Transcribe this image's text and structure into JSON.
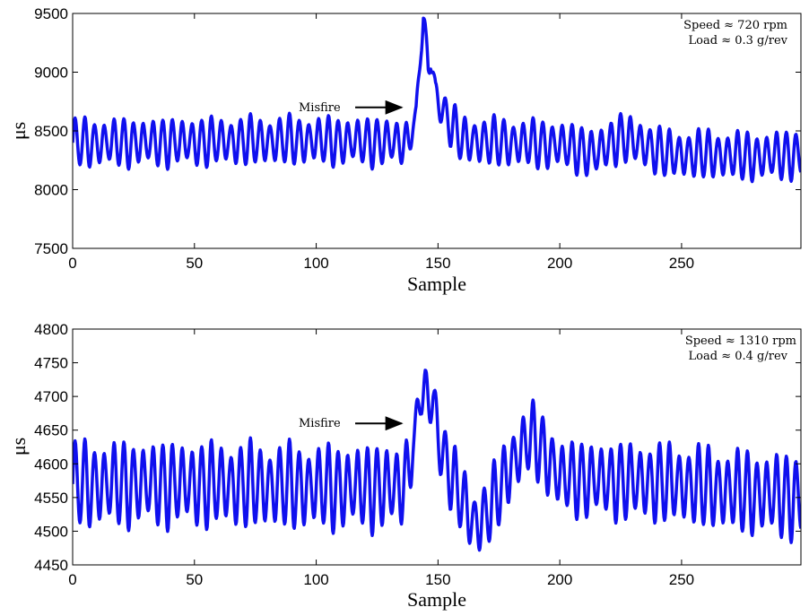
{
  "chart_data": [
    {
      "type": "line",
      "xlabel": "Sample",
      "ylabel": "μs",
      "xlim": [
        0,
        299
      ],
      "ylim": [
        7500,
        9500
      ],
      "xticks": [
        0,
        50,
        100,
        150,
        200,
        250
      ],
      "yticks": [
        7500,
        8000,
        8500,
        9000,
        9500
      ],
      "xtick_labels": [
        "0",
        "50",
        "100",
        "150",
        "200",
        "250"
      ],
      "ytick_labels": [
        "7500",
        "8000",
        "8500",
        "9000",
        "9500"
      ],
      "annotation_lines": [
        "Speed ≈ 720 rpm",
        "Load ≈ 0.3 g/rev"
      ],
      "misfire_label": "Misfire",
      "misfire_arrow": {
        "tail": [
          116,
          8700
        ],
        "head": [
          135,
          8700
        ]
      },
      "line_color": "#1010ee",
      "series": [
        {
          "model": "oscillation",
          "period": 4,
          "key_points": [
            [
              0,
              8400
            ],
            [
              30,
              8400
            ],
            [
              90,
              8420
            ],
            [
              120,
              8410
            ],
            [
              138,
              8400
            ],
            [
              139,
              8480
            ],
            [
              140,
              8560
            ],
            [
              141,
              8630
            ],
            [
              142,
              8950
            ],
            [
              143,
              9250
            ],
            [
              144,
              9460
            ],
            [
              145,
              9200
            ],
            [
              146,
              9020
            ],
            [
              147,
              9140
            ],
            [
              148,
              9000
            ],
            [
              149,
              8800
            ],
            [
              150,
              8760
            ],
            [
              155,
              8560
            ],
            [
              160,
              8420
            ],
            [
              200,
              8380
            ],
            [
              215,
              8310
            ],
            [
              225,
              8450
            ],
            [
              245,
              8300
            ],
            [
              260,
              8300
            ],
            [
              280,
              8280
            ],
            [
              299,
              8300
            ]
          ],
          "amplitude_points": [
            [
              0,
              180
            ],
            [
              137,
              180
            ],
            [
              140,
              40
            ],
            [
              144,
              150
            ],
            [
              150,
              140
            ],
            [
              158,
              180
            ],
            [
              299,
              180
            ]
          ]
        }
      ]
    },
    {
      "type": "line",
      "xlabel": "Sample",
      "ylabel": "μs",
      "xlim": [
        0,
        299
      ],
      "ylim": [
        4450,
        4800
      ],
      "xticks": [
        0,
        50,
        100,
        150,
        200,
        250
      ],
      "yticks": [
        4450,
        4500,
        4550,
        4600,
        4650,
        4700,
        4750,
        4800
      ],
      "xtick_labels": [
        "0",
        "50",
        "100",
        "150",
        "200",
        "250"
      ],
      "ytick_labels": [
        "4450",
        "4500",
        "4550",
        "4600",
        "4650",
        "4700",
        "4750",
        "4800"
      ],
      "annotation_lines": [
        "Speed ≈ 1310 rpm",
        "Load ≈ 0.4 g/rev"
      ],
      "misfire_label": "Misfire",
      "misfire_arrow": {
        "tail": [
          116,
          4660
        ],
        "head": [
          135,
          4660
        ]
      },
      "line_color": "#1010ee",
      "series": [
        {
          "model": "oscillation",
          "period": 4,
          "key_points": [
            [
              0,
              4570
            ],
            [
              50,
              4570
            ],
            [
              100,
              4565
            ],
            [
              135,
              4565
            ],
            [
              139,
              4600
            ],
            [
              141,
              4660
            ],
            [
              143,
              4720
            ],
            [
              145,
              4690
            ],
            [
              148,
              4700
            ],
            [
              150,
              4640
            ],
            [
              155,
              4585
            ],
            [
              160,
              4545
            ],
            [
              165,
              4510
            ],
            [
              170,
              4525
            ],
            [
              175,
              4560
            ],
            [
              180,
              4600
            ],
            [
              185,
              4625
            ],
            [
              188,
              4640
            ],
            [
              192,
              4625
            ],
            [
              200,
              4580
            ],
            [
              220,
              4575
            ],
            [
              250,
              4570
            ],
            [
              270,
              4560
            ],
            [
              299,
              4550
            ]
          ],
          "amplitude_points": [
            [
              0,
              55
            ],
            [
              137,
              55
            ],
            [
              140,
              10
            ],
            [
              143,
              45
            ],
            [
              150,
              45
            ],
            [
              299,
              55
            ]
          ]
        }
      ]
    }
  ]
}
